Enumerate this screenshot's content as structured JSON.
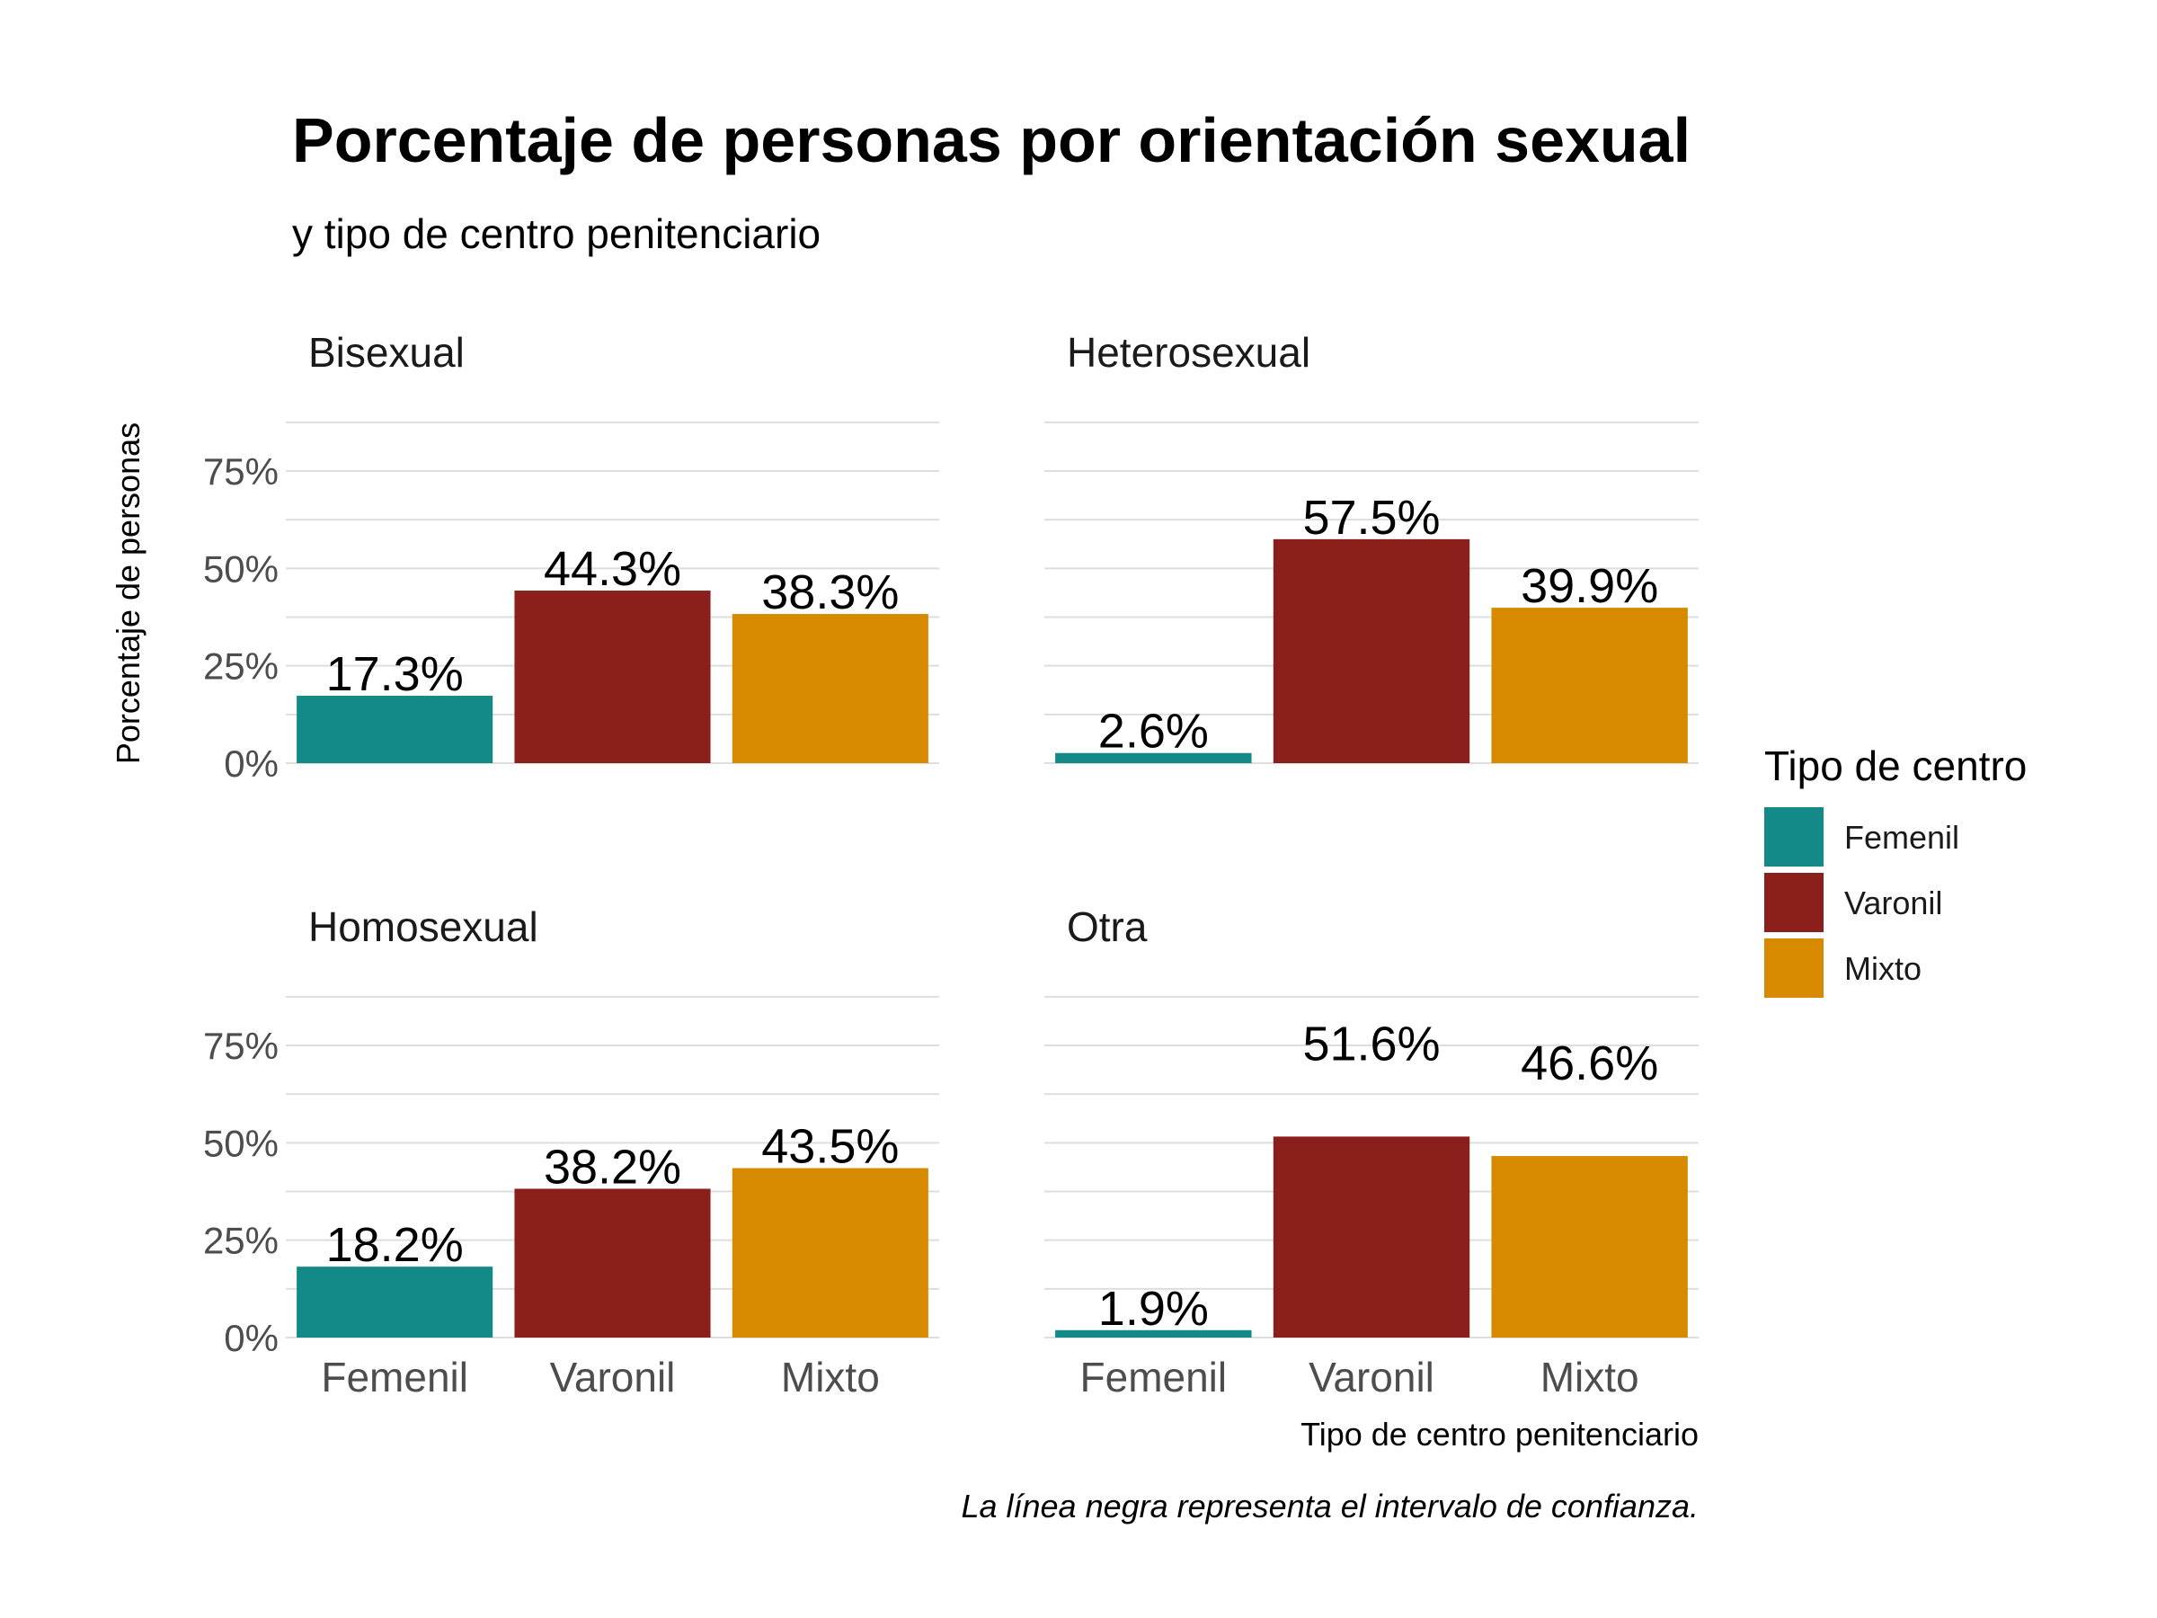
{
  "chart_data": {
    "type": "bar",
    "title": "Porcentaje de personas por orientación sexual",
    "subtitle": "y tipo de centro penitenciario",
    "xlabel": "Tipo de centro penitenciario",
    "ylabel": "Porcentaje de personas",
    "caption": "La línea negra representa el intervalo de confianza.",
    "categories": [
      "Femenil",
      "Varonil",
      "Mixto"
    ],
    "yticks": [
      "0%",
      "25%",
      "50%",
      "75%"
    ],
    "ylim": [
      0,
      90
    ],
    "grid": true,
    "legend": {
      "title": "Tipo de centro",
      "position": "right",
      "entries": [
        "Femenil",
        "Varonil",
        "Mixto"
      ]
    },
    "colors": {
      "Femenil": "#138A87",
      "Varonil": "#8B1F1B",
      "Mixto": "#D78A00"
    },
    "panels": [
      {
        "name": "Bisexual",
        "values": [
          17.3,
          44.3,
          38.3
        ],
        "labels": [
          "17.3%",
          "44.3%",
          "38.3%"
        ]
      },
      {
        "name": "Heterosexual",
        "values": [
          2.6,
          57.5,
          39.9
        ],
        "labels": [
          "2.6%",
          "57.5%",
          "39.9%"
        ]
      },
      {
        "name": "Homosexual",
        "values": [
          18.2,
          38.2,
          43.5
        ],
        "labels": [
          "18.2%",
          "38.2%",
          "43.5%"
        ]
      },
      {
        "name": "Otra",
        "values": [
          1.9,
          51.6,
          46.6
        ],
        "labels": [
          "1.9%",
          "51.6%",
          "46.6%"
        ]
      }
    ]
  }
}
